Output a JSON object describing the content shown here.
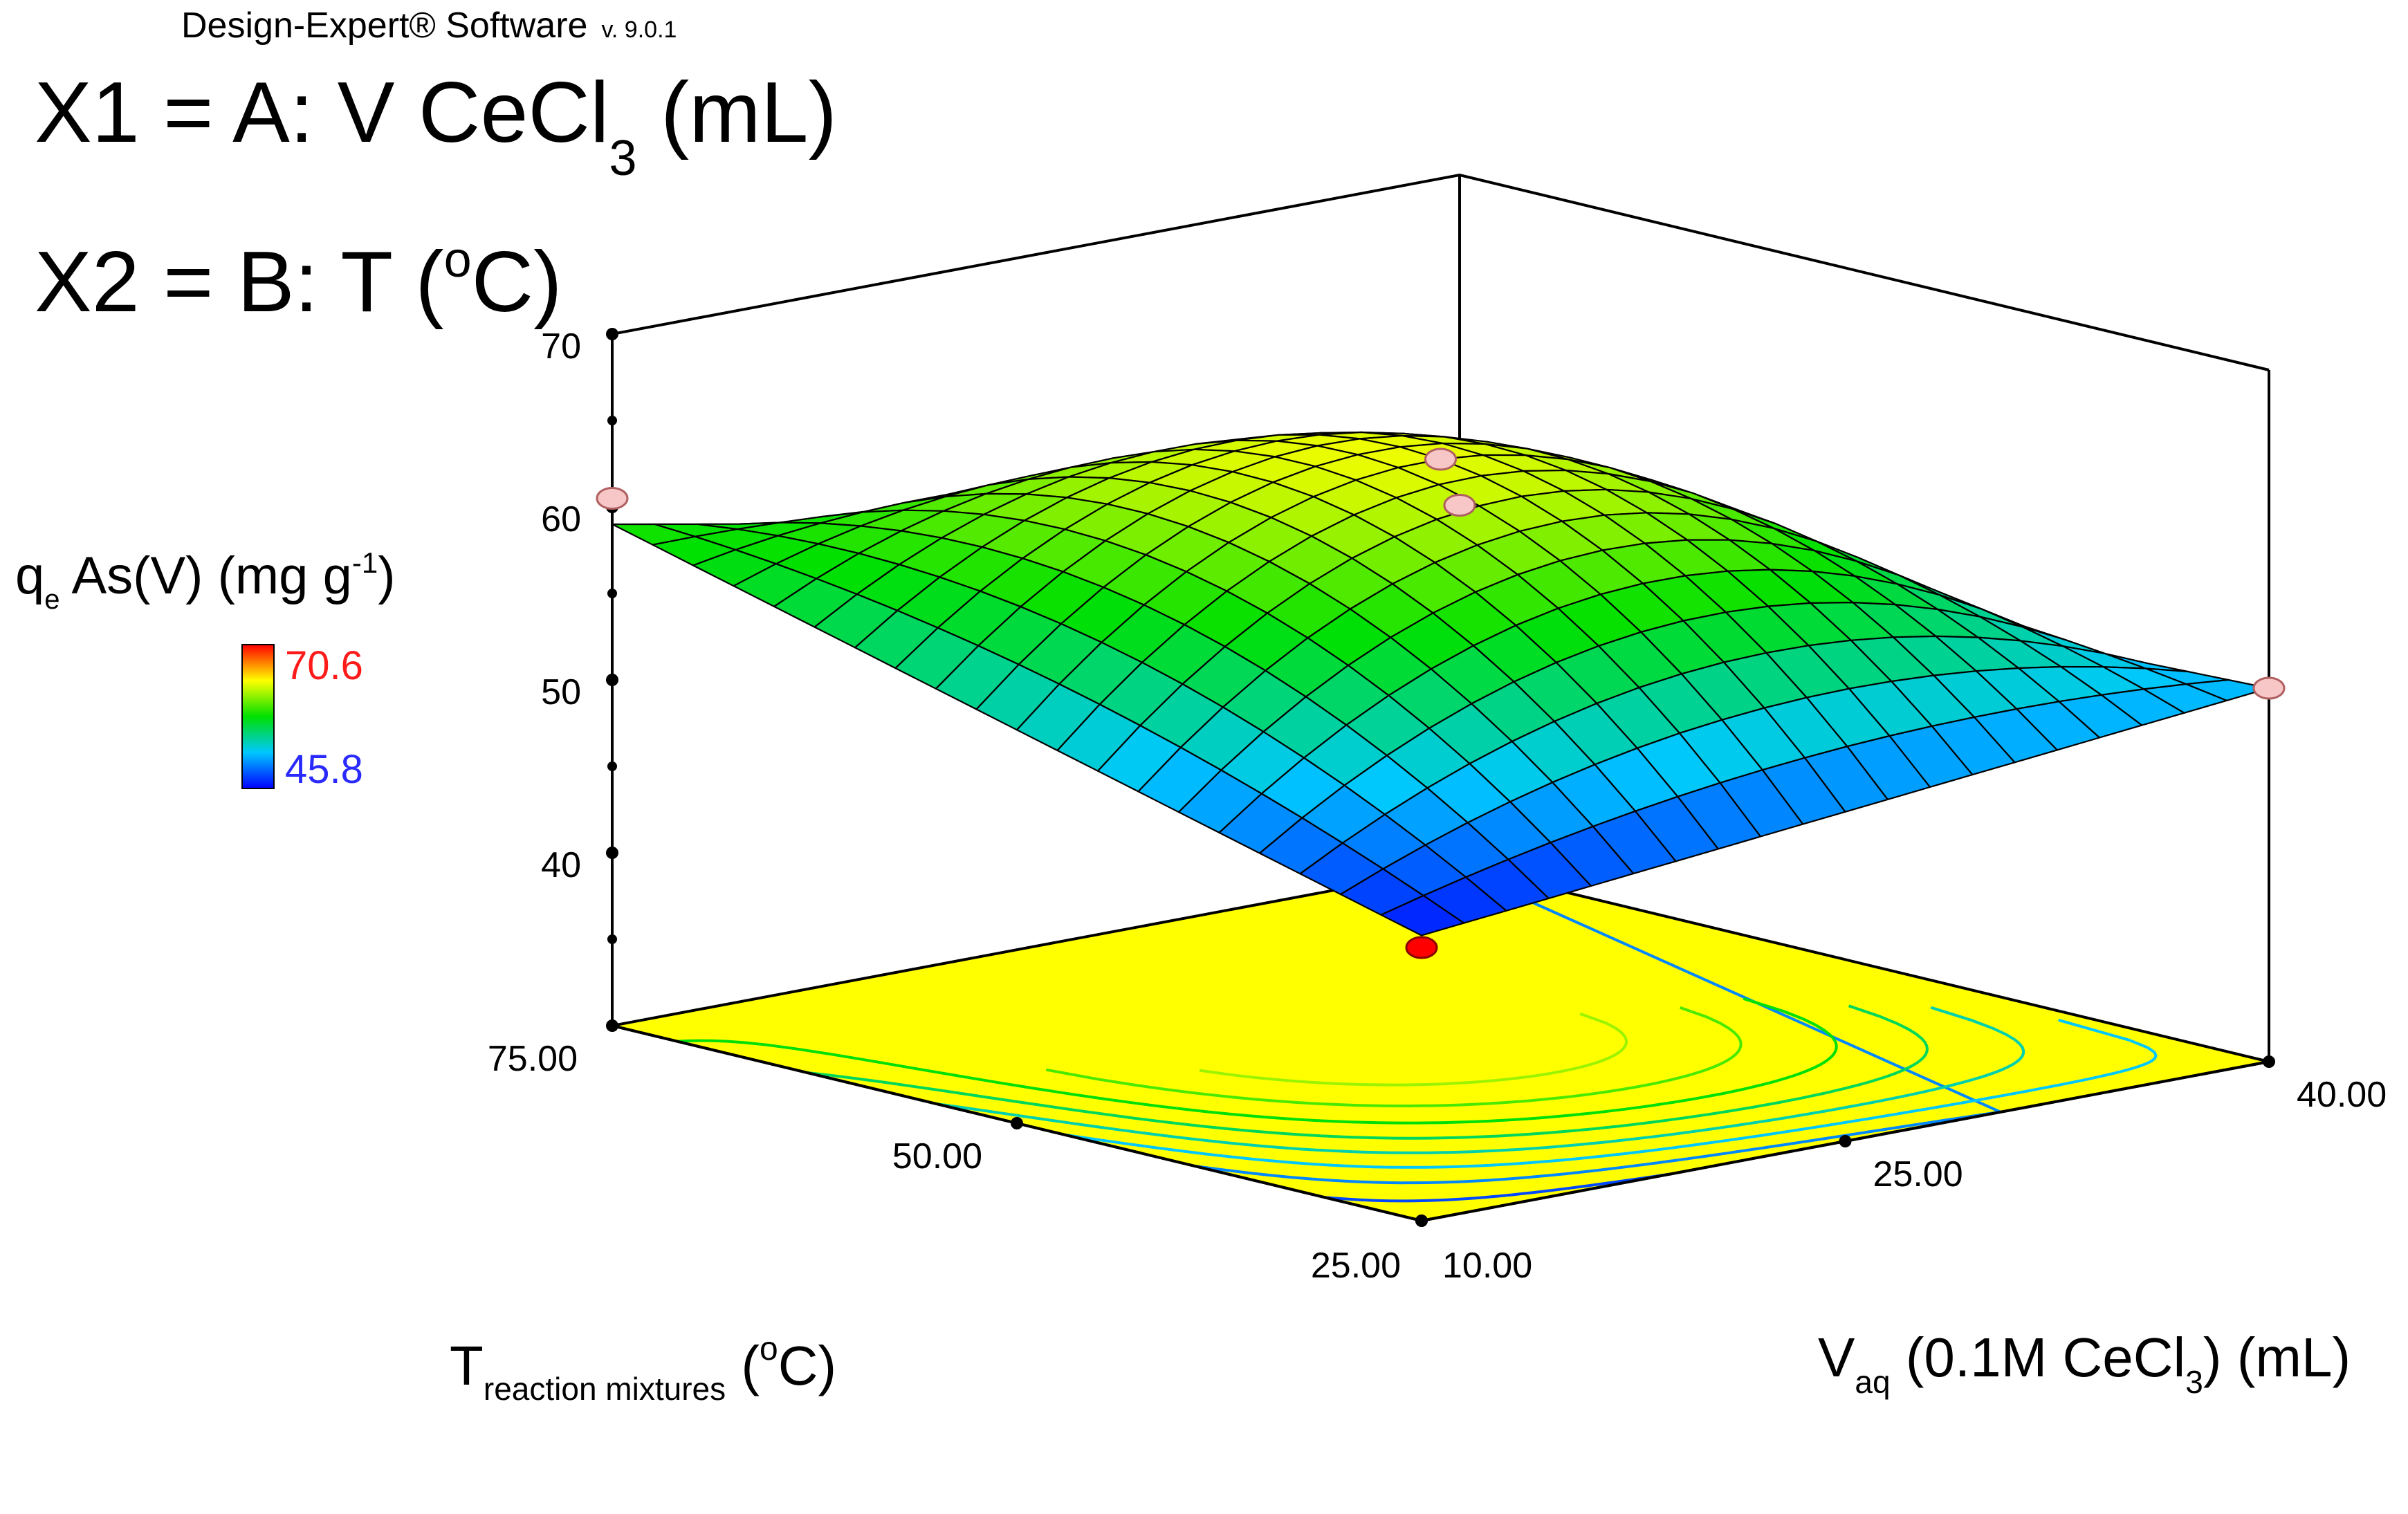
{
  "software": {
    "name": "Design-Expert® Software",
    "version": "v. 9.0.1"
  },
  "factors": {
    "x1": {
      "prefix": "X1 = A: V CeCl",
      "sub": "3",
      "suffix": " (mL)"
    },
    "x2": {
      "prefix": "X2 = B: T (",
      "sup": "o",
      "suffix": "C)"
    }
  },
  "legend": {
    "max_label": "70.6",
    "min_label": "45.8",
    "colors": [
      "#0000ff",
      "#00c8ff",
      "#00e000",
      "#ffff00",
      "#ff0000"
    ]
  },
  "chart_data": {
    "type": "surface3d",
    "title": "",
    "zlabel": {
      "main": "q",
      "sub": "e",
      "mid": " As(V) (mg g",
      "sup": "-1",
      "end": ")"
    },
    "xlabel": {
      "main": "V",
      "sub": "aq",
      "mid": " (0.1M CeCl",
      "sub2": "3",
      "end": ") (mL)"
    },
    "ylabel": {
      "main": "T",
      "sub": "reaction mixtures",
      "mid": " (",
      "sup": "o",
      "end": "C)"
    },
    "x_range": [
      10,
      40
    ],
    "y_range": [
      25,
      75
    ],
    "z_range": [
      30,
      70
    ],
    "x_ticks": [
      {
        "value": 10,
        "label": "10.00"
      },
      {
        "value": 25,
        "label": "25.00"
      },
      {
        "value": 40,
        "label": "40.00"
      }
    ],
    "y_ticks": [
      {
        "value": 25,
        "label": "25.00"
      },
      {
        "value": 50,
        "label": "50.00"
      },
      {
        "value": 75,
        "label": "75.00"
      }
    ],
    "z_ticks": [
      {
        "value": 40,
        "label": "40"
      },
      {
        "value": 50,
        "label": "50"
      },
      {
        "value": 60,
        "label": "60"
      },
      {
        "value": 70,
        "label": "70"
      }
    ],
    "z_minor_ticks": [
      35,
      45,
      55,
      65
    ],
    "surface_min": 45.8,
    "surface_max": 70.6,
    "grid_divisions": 20,
    "corner_values": [
      {
        "x": 10,
        "y": 25,
        "z": 46.5
      },
      {
        "x": 10,
        "y": 75,
        "z": 59.0
      },
      {
        "x": 40,
        "y": 25,
        "z": 51.6
      },
      {
        "x": 40,
        "y": 75,
        "z": 49.9
      }
    ],
    "center_value": {
      "x": 25,
      "y": 50,
      "z": 63.8
    },
    "design_points": [
      {
        "x": 10,
        "y": 25,
        "z": 45.8,
        "below": true
      },
      {
        "x": 10,
        "y": 75,
        "z": 60.5
      },
      {
        "x": 25,
        "y": 50,
        "z": 63.8
      },
      {
        "x": 40,
        "y": 25,
        "z": 51.6
      },
      {
        "x": 40,
        "y": 75,
        "z": 50.9
      }
    ]
  }
}
